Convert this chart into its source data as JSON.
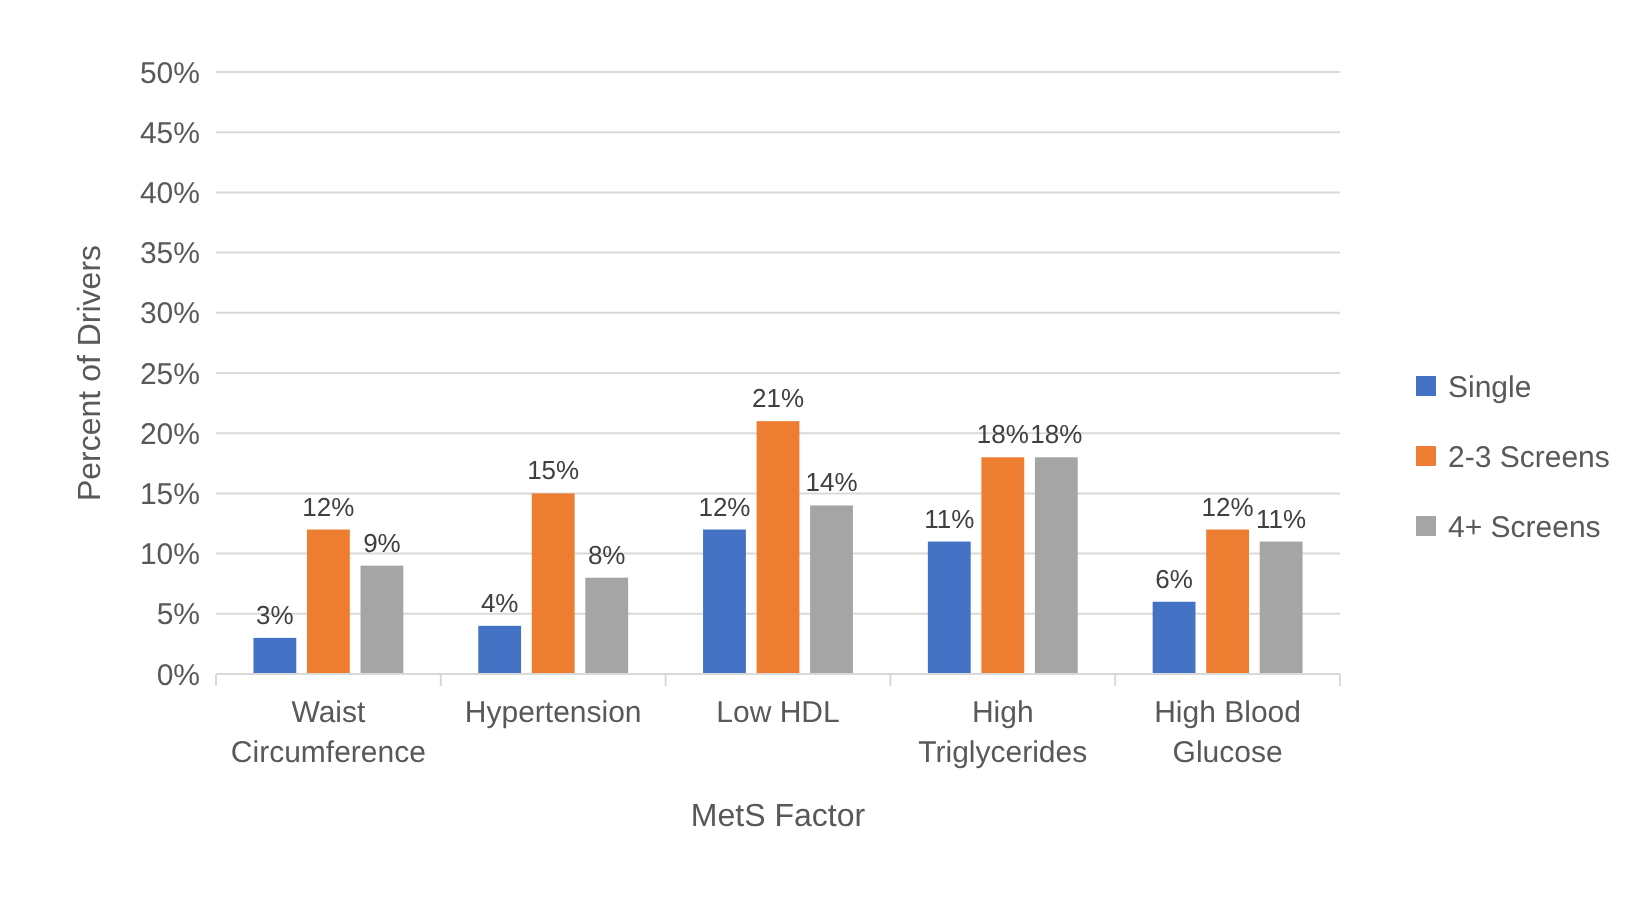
{
  "chart_data": {
    "type": "bar",
    "xlabel": "MetS Factor",
    "ylabel": "Percent of Drivers",
    "categories": [
      "Waist Circumference",
      "Hypertension",
      "Low HDL",
      "High Triglycerides",
      "High Blood Glucose"
    ],
    "series": [
      {
        "name": "Single",
        "color": "#4472c4",
        "values": [
          3,
          4,
          12,
          11,
          6
        ],
        "value_labels": [
          "3%",
          "4%",
          "12%",
          "11%",
          "6%"
        ]
      },
      {
        "name": "2-3 Screens",
        "color": "#ed7d31",
        "values": [
          12,
          15,
          21,
          18,
          12
        ],
        "value_labels": [
          "12%",
          "15%",
          "21%",
          "18%",
          "12%"
        ]
      },
      {
        "name": "4+ Screens",
        "color": "#a5a5a5",
        "values": [
          9,
          8,
          14,
          18,
          11
        ],
        "value_labels": [
          "9%",
          "8%",
          "14%",
          "18%",
          "11%"
        ]
      }
    ],
    "ylim": [
      0,
      50
    ],
    "yticks": [
      {
        "value": 0,
        "label": "0%"
      },
      {
        "value": 5,
        "label": "5%"
      },
      {
        "value": 10,
        "label": "10%"
      },
      {
        "value": 15,
        "label": "15%"
      },
      {
        "value": 20,
        "label": "20%"
      },
      {
        "value": 25,
        "label": "25%"
      },
      {
        "value": 30,
        "label": "30%"
      },
      {
        "value": 35,
        "label": "35%"
      },
      {
        "value": 40,
        "label": "40%"
      },
      {
        "value": 45,
        "label": "45%"
      },
      {
        "value": 50,
        "label": "50%"
      }
    ],
    "grid": "y",
    "legend": "right"
  }
}
